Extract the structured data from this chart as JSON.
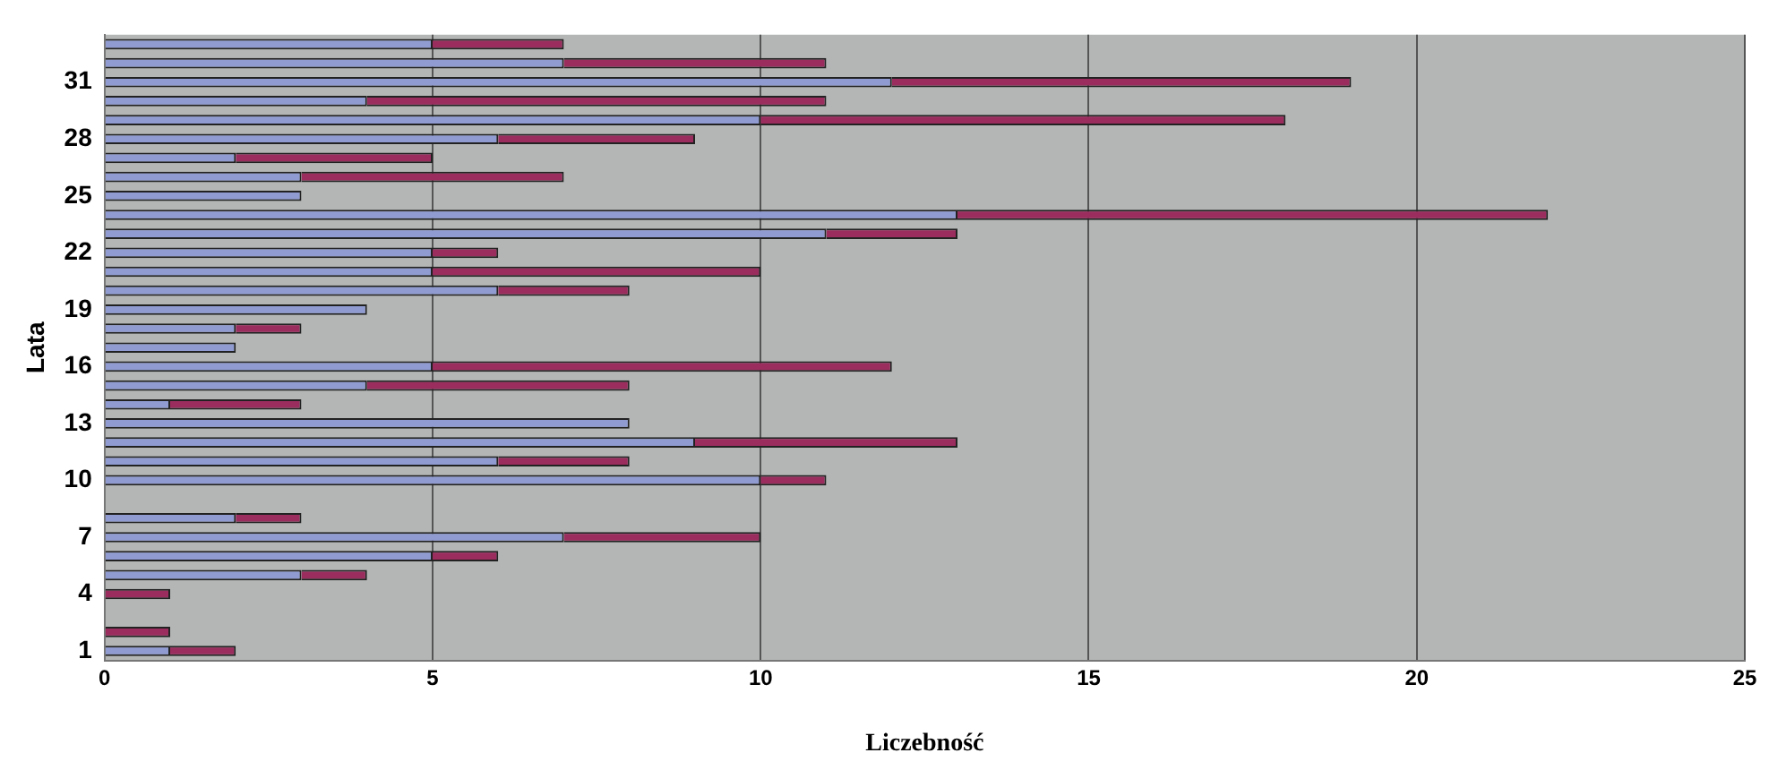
{
  "chart_data": {
    "type": "bar",
    "orientation": "horizontal",
    "stacked": true,
    "xlabel": "Liczebność",
    "ylabel": "Lata",
    "categories": [
      null,
      null,
      "31",
      null,
      null,
      "28",
      null,
      null,
      "25",
      null,
      null,
      "22",
      null,
      null,
      "19",
      null,
      null,
      "16",
      null,
      null,
      "13",
      null,
      null,
      "10",
      null,
      null,
      "7",
      null,
      null,
      "4",
      null,
      null,
      "1"
    ],
    "series": [
      {
        "color": "#8f9bd1",
        "values": [
          5,
          7,
          12,
          4,
          10,
          6,
          2,
          3,
          3,
          13,
          11,
          5,
          5,
          6,
          4,
          2,
          2,
          5,
          4,
          1,
          8,
          9,
          6,
          10,
          null,
          2,
          7,
          5,
          3,
          0,
          null,
          0,
          1
        ]
      },
      {
        "color": "#9b2d5e",
        "values": [
          2,
          4,
          7,
          7,
          8,
          3,
          3,
          4,
          0,
          9,
          2,
          1,
          5,
          2,
          0,
          1,
          0,
          7,
          4,
          2,
          0,
          4,
          2,
          1,
          null,
          1,
          3,
          1,
          1,
          1,
          null,
          1,
          1
        ]
      }
    ],
    "xlim": [
      0,
      25
    ],
    "xticks": [
      0,
      5,
      10,
      15,
      20,
      25
    ],
    "grid": "x",
    "legend": false
  }
}
